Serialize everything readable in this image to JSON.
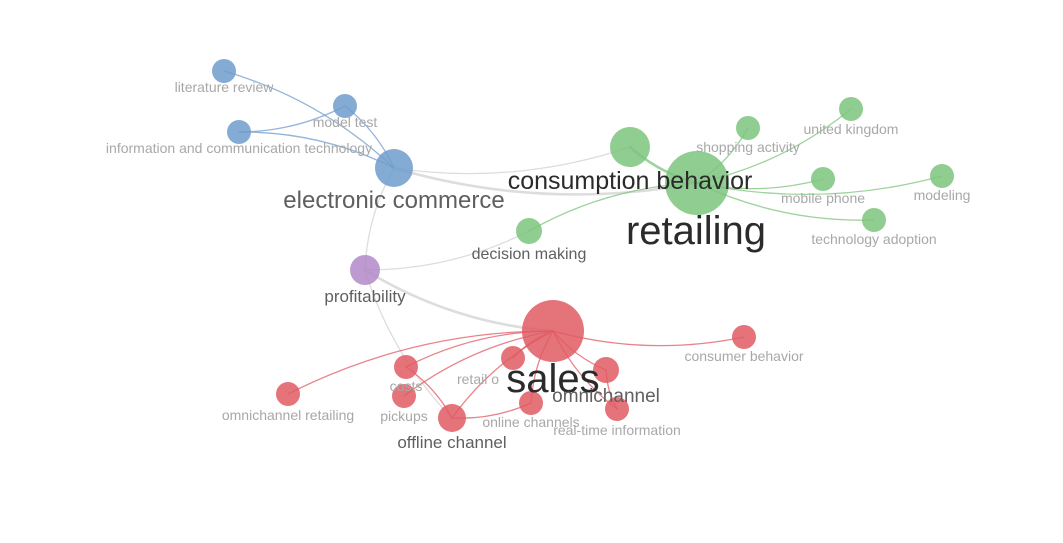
{
  "colors": {
    "blue": "#6f9ccd",
    "green": "#7cc47c",
    "red": "#e05a63",
    "purple": "#b18ac9",
    "gray_edge": "#cfcfcf",
    "label_dark": "#2b2b2b",
    "label_mid": "#5f5f5f",
    "label_light": "#a8a8a8"
  },
  "nodes": [
    {
      "id": "literature_review",
      "label": "literature review",
      "cluster": "blue"
    },
    {
      "id": "model_test",
      "label": "model test",
      "cluster": "blue"
    },
    {
      "id": "ict",
      "label": "information and communication technology",
      "cluster": "blue"
    },
    {
      "id": "electronic_commerce",
      "label": "electronic commerce",
      "cluster": "blue"
    },
    {
      "id": "profitability",
      "label": "profitability",
      "cluster": "purple"
    },
    {
      "id": "consumption_behavior",
      "label": "consumption behavior",
      "cluster": "green"
    },
    {
      "id": "retailing",
      "label": "retailing",
      "cluster": "green"
    },
    {
      "id": "shopping_activity",
      "label": "shopping activity",
      "cluster": "green"
    },
    {
      "id": "united_kingdom",
      "label": "united kingdom",
      "cluster": "green"
    },
    {
      "id": "mobile_phone",
      "label": "mobile phone",
      "cluster": "green"
    },
    {
      "id": "modeling",
      "label": "modeling",
      "cluster": "green"
    },
    {
      "id": "technology_adoption",
      "label": "technology adoption",
      "cluster": "green"
    },
    {
      "id": "decision_making",
      "label": "decision making",
      "cluster": "green"
    },
    {
      "id": "sales",
      "label": "sales",
      "cluster": "red"
    },
    {
      "id": "consumer_behavior",
      "label": "consumer behavior",
      "cluster": "red"
    },
    {
      "id": "costs",
      "label": "costs",
      "cluster": "red"
    },
    {
      "id": "retail_outlets",
      "label": "retail o",
      "cluster": "red"
    },
    {
      "id": "omnichannel",
      "label": "omnichannel",
      "cluster": "red"
    },
    {
      "id": "omnichannel_retailing",
      "label": "omnichannel retailing",
      "cluster": "red"
    },
    {
      "id": "pickups",
      "label": "pickups",
      "cluster": "red"
    },
    {
      "id": "offline_channel",
      "label": "offline channel",
      "cluster": "red"
    },
    {
      "id": "online_channels",
      "label": "online channels",
      "cluster": "red"
    },
    {
      "id": "real_time_information",
      "label": "real-time information",
      "cluster": "red"
    }
  ],
  "edges": [
    [
      "electronic_commerce",
      "literature_review"
    ],
    [
      "electronic_commerce",
      "model_test"
    ],
    [
      "electronic_commerce",
      "ict"
    ],
    [
      "ict",
      "model_test"
    ],
    [
      "electronic_commerce",
      "consumption_behavior"
    ],
    [
      "electronic_commerce",
      "retailing"
    ],
    [
      "electronic_commerce",
      "profitability"
    ],
    [
      "profitability",
      "decision_making"
    ],
    [
      "profitability",
      "sales"
    ],
    [
      "profitability",
      "offline_channel"
    ],
    [
      "consumption_behavior",
      "retailing"
    ],
    [
      "retailing",
      "shopping_activity"
    ],
    [
      "retailing",
      "united_kingdom"
    ],
    [
      "retailing",
      "mobile_phone"
    ],
    [
      "retailing",
      "modeling"
    ],
    [
      "retailing",
      "technology_adoption"
    ],
    [
      "retailing",
      "decision_making"
    ],
    [
      "sales",
      "consumer_behavior"
    ],
    [
      "sales",
      "omnichannel_retailing"
    ],
    [
      "sales",
      "costs"
    ],
    [
      "sales",
      "retail_outlets"
    ],
    [
      "sales",
      "omnichannel"
    ],
    [
      "sales",
      "pickups"
    ],
    [
      "sales",
      "offline_channel"
    ],
    [
      "sales",
      "online_channels"
    ],
    [
      "sales",
      "real_time_information"
    ],
    [
      "offline_channel",
      "online_channels"
    ],
    [
      "offline_channel",
      "costs"
    ],
    [
      "omnichannel",
      "real_time_information"
    ]
  ]
}
